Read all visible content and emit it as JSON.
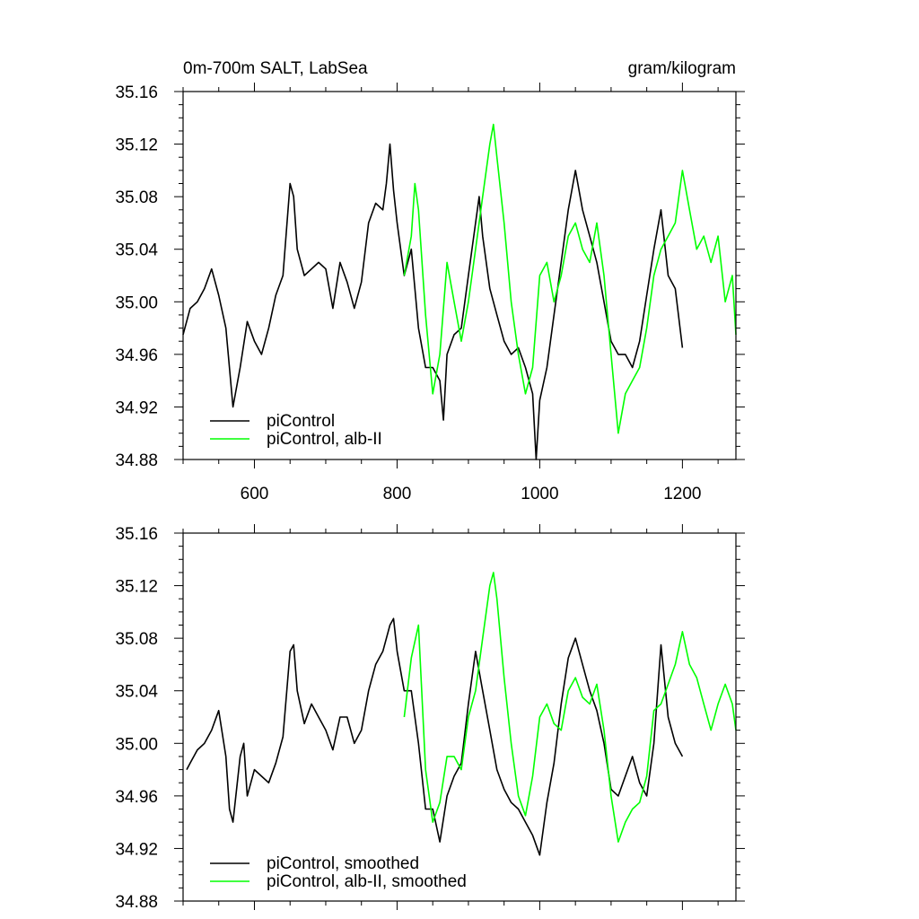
{
  "header": {
    "left_title": "0m-700m SALT, LabSea",
    "right_title": "gram/kilogram"
  },
  "chart_data": [
    {
      "type": "line",
      "xlim": [
        500,
        1275
      ],
      "ylim": [
        34.88,
        35.16
      ],
      "x_ticks": [
        600,
        800,
        1000,
        1200
      ],
      "x_tick_labels": [
        "600",
        "800",
        "1000",
        "1200"
      ],
      "y_ticks": [
        34.88,
        34.92,
        34.96,
        35.0,
        35.04,
        35.08,
        35.12,
        35.16
      ],
      "y_tick_labels": [
        "34.88",
        "34.92",
        "34.96",
        "35.00",
        "35.04",
        "35.08",
        "35.12",
        "35.16"
      ],
      "grid": false,
      "legend_position": "bottom-left",
      "series": [
        {
          "name": "piControl",
          "color": "#000000",
          "x": [
            500,
            510,
            520,
            530,
            540,
            550,
            560,
            570,
            580,
            590,
            600,
            610,
            620,
            630,
            640,
            650,
            655,
            660,
            670,
            680,
            690,
            700,
            710,
            720,
            730,
            740,
            750,
            760,
            770,
            780,
            785,
            790,
            795,
            800,
            810,
            820,
            830,
            840,
            850,
            860,
            865,
            870,
            880,
            890,
            900,
            910,
            915,
            920,
            930,
            940,
            950,
            960,
            970,
            980,
            990,
            995,
            1000,
            1010,
            1020,
            1030,
            1040,
            1050,
            1060,
            1070,
            1080,
            1090,
            1100,
            1110,
            1120,
            1130,
            1140,
            1150,
            1160,
            1170,
            1180,
            1190,
            1200
          ],
          "values": [
            34.975,
            34.995,
            35.0,
            35.01,
            35.025,
            35.005,
            34.98,
            34.92,
            34.95,
            34.985,
            34.97,
            34.96,
            34.98,
            35.005,
            35.02,
            35.09,
            35.08,
            35.04,
            35.02,
            35.025,
            35.03,
            35.025,
            34.995,
            35.03,
            35.015,
            34.995,
            35.015,
            35.06,
            35.075,
            35.07,
            35.09,
            35.12,
            35.085,
            35.06,
            35.02,
            35.04,
            34.98,
            34.95,
            34.95,
            34.94,
            34.91,
            34.96,
            34.975,
            34.98,
            35.02,
            35.06,
            35.08,
            35.05,
            35.01,
            34.99,
            34.97,
            34.96,
            34.965,
            34.95,
            34.93,
            34.88,
            34.925,
            34.95,
            34.99,
            35.03,
            35.07,
            35.1,
            35.07,
            35.05,
            35.03,
            35.0,
            34.97,
            34.96,
            34.96,
            34.95,
            34.97,
            35.005,
            35.04,
            35.07,
            35.02,
            35.01,
            34.965
          ]
        },
        {
          "name": "piControl, alb-II",
          "color": "#00ff00",
          "x": [
            810,
            820,
            825,
            830,
            840,
            850,
            860,
            870,
            880,
            890,
            900,
            910,
            920,
            930,
            935,
            940,
            950,
            960,
            970,
            980,
            990,
            1000,
            1010,
            1020,
            1030,
            1040,
            1050,
            1060,
            1070,
            1080,
            1090,
            1100,
            1105,
            1110,
            1120,
            1130,
            1140,
            1150,
            1160,
            1170,
            1180,
            1190,
            1200,
            1210,
            1220,
            1230,
            1240,
            1250,
            1260,
            1270,
            1275
          ],
          "values": [
            35.02,
            35.05,
            35.09,
            35.07,
            34.99,
            34.93,
            34.96,
            35.03,
            35.0,
            34.97,
            35.0,
            35.04,
            35.08,
            35.12,
            35.135,
            35.11,
            35.06,
            35.0,
            34.96,
            34.93,
            34.95,
            35.02,
            35.03,
            35.0,
            35.02,
            35.05,
            35.06,
            35.04,
            35.03,
            35.06,
            35.02,
            34.96,
            34.93,
            34.9,
            34.93,
            34.94,
            34.95,
            34.98,
            35.02,
            35.04,
            35.05,
            35.06,
            35.1,
            35.07,
            35.04,
            35.05,
            35.03,
            35.05,
            35.0,
            35.02,
            34.975
          ]
        }
      ]
    },
    {
      "type": "line",
      "xlim": [
        500,
        1275
      ],
      "ylim": [
        34.88,
        35.16
      ],
      "x_ticks": [
        600,
        800,
        1000,
        1200
      ],
      "y_ticks": [
        34.88,
        34.92,
        34.96,
        35.0,
        35.04,
        35.08,
        35.12,
        35.16
      ],
      "y_tick_labels": [
        "34.88",
        "34.92",
        "34.96",
        "35.00",
        "35.04",
        "35.08",
        "35.12",
        "35.16"
      ],
      "grid": false,
      "legend_position": "bottom-left",
      "series": [
        {
          "name": "piControl, smoothed",
          "color": "#000000",
          "x": [
            505,
            510,
            520,
            530,
            540,
            550,
            560,
            565,
            570,
            580,
            585,
            590,
            600,
            610,
            620,
            630,
            640,
            650,
            655,
            660,
            670,
            680,
            690,
            700,
            710,
            720,
            730,
            740,
            750,
            760,
            770,
            780,
            790,
            795,
            800,
            810,
            820,
            830,
            840,
            850,
            860,
            870,
            880,
            890,
            900,
            910,
            920,
            930,
            940,
            950,
            960,
            970,
            980,
            990,
            1000,
            1010,
            1020,
            1030,
            1040,
            1050,
            1060,
            1070,
            1080,
            1090,
            1100,
            1110,
            1120,
            1130,
            1140,
            1150,
            1160,
            1170,
            1180,
            1190,
            1200
          ],
          "values": [
            34.98,
            34.985,
            34.995,
            35.0,
            35.01,
            35.025,
            34.99,
            34.95,
            34.94,
            34.99,
            35.0,
            34.96,
            34.98,
            34.975,
            34.97,
            34.985,
            35.005,
            35.07,
            35.075,
            35.04,
            35.015,
            35.03,
            35.02,
            35.01,
            34.995,
            35.02,
            35.02,
            35.0,
            35.01,
            35.04,
            35.06,
            35.07,
            35.09,
            35.095,
            35.07,
            35.04,
            35.04,
            35.0,
            34.95,
            34.95,
            34.925,
            34.96,
            34.975,
            34.985,
            35.03,
            35.07,
            35.04,
            35.01,
            34.98,
            34.965,
            34.955,
            34.95,
            34.94,
            34.93,
            34.915,
            34.955,
            34.985,
            35.03,
            35.065,
            35.08,
            35.06,
            35.04,
            35.025,
            35.0,
            34.965,
            34.96,
            34.975,
            34.99,
            34.97,
            34.96,
            35.0,
            35.075,
            35.02,
            35.0,
            34.99
          ]
        },
        {
          "name": "piControl, alb-II, smoothed",
          "color": "#00ff00",
          "x": [
            810,
            820,
            830,
            840,
            850,
            860,
            870,
            880,
            890,
            900,
            910,
            920,
            930,
            935,
            940,
            950,
            960,
            970,
            980,
            990,
            1000,
            1010,
            1020,
            1030,
            1040,
            1050,
            1060,
            1070,
            1080,
            1090,
            1100,
            1110,
            1120,
            1130,
            1140,
            1150,
            1160,
            1170,
            1180,
            1190,
            1200,
            1210,
            1220,
            1230,
            1240,
            1250,
            1260,
            1270,
            1275
          ],
          "values": [
            35.02,
            35.065,
            35.09,
            34.98,
            34.94,
            34.955,
            34.99,
            34.99,
            34.98,
            35.02,
            35.04,
            35.08,
            35.12,
            35.13,
            35.11,
            35.05,
            35.0,
            34.96,
            34.945,
            34.975,
            35.02,
            35.03,
            35.015,
            35.01,
            35.04,
            35.05,
            35.035,
            35.03,
            35.045,
            35.01,
            34.96,
            34.925,
            34.94,
            34.95,
            34.955,
            34.975,
            35.025,
            35.03,
            35.045,
            35.06,
            35.085,
            35.06,
            35.05,
            35.03,
            35.01,
            35.03,
            35.045,
            35.03,
            35.01
          ]
        }
      ]
    }
  ]
}
